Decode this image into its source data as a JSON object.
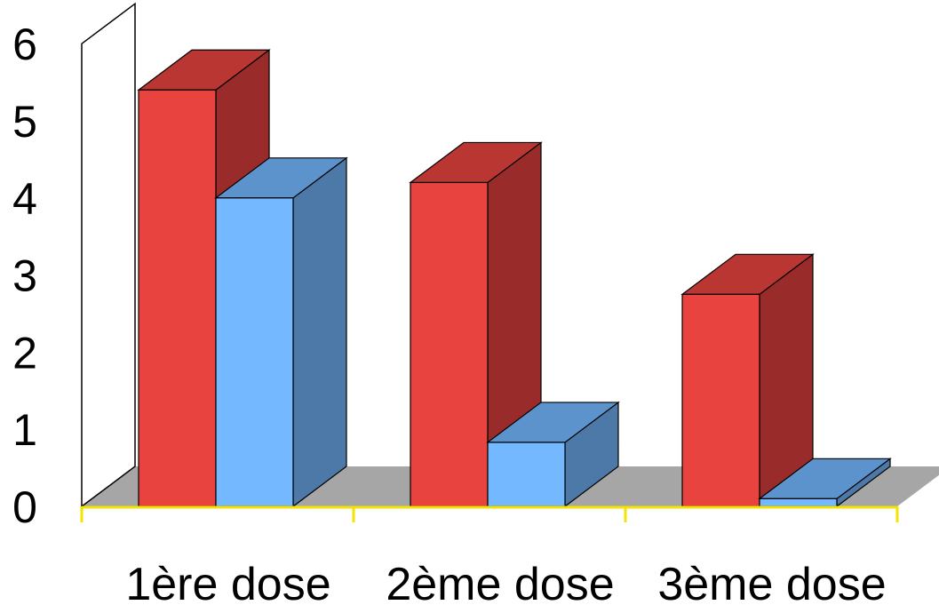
{
  "chart_data": {
    "type": "bar",
    "style": "3d-clustered-column",
    "categories": [
      "1ère dose",
      "2ème dose",
      "3ème dose"
    ],
    "series": [
      {
        "color": "#e8433f",
        "values": [
          5.4,
          4.2,
          2.75
        ]
      },
      {
        "color": "#74b8ff",
        "values": [
          4.0,
          0.83,
          0.1
        ]
      }
    ],
    "y_ticks": [
      "0",
      "1",
      "2",
      "3",
      "4",
      "5",
      "6"
    ],
    "ylim": [
      0,
      6
    ],
    "grid": false,
    "legend": "none",
    "colors": {
      "floor": "#a6a6a6",
      "axis_line": "#f5e300",
      "wall": "#ffffff"
    }
  }
}
